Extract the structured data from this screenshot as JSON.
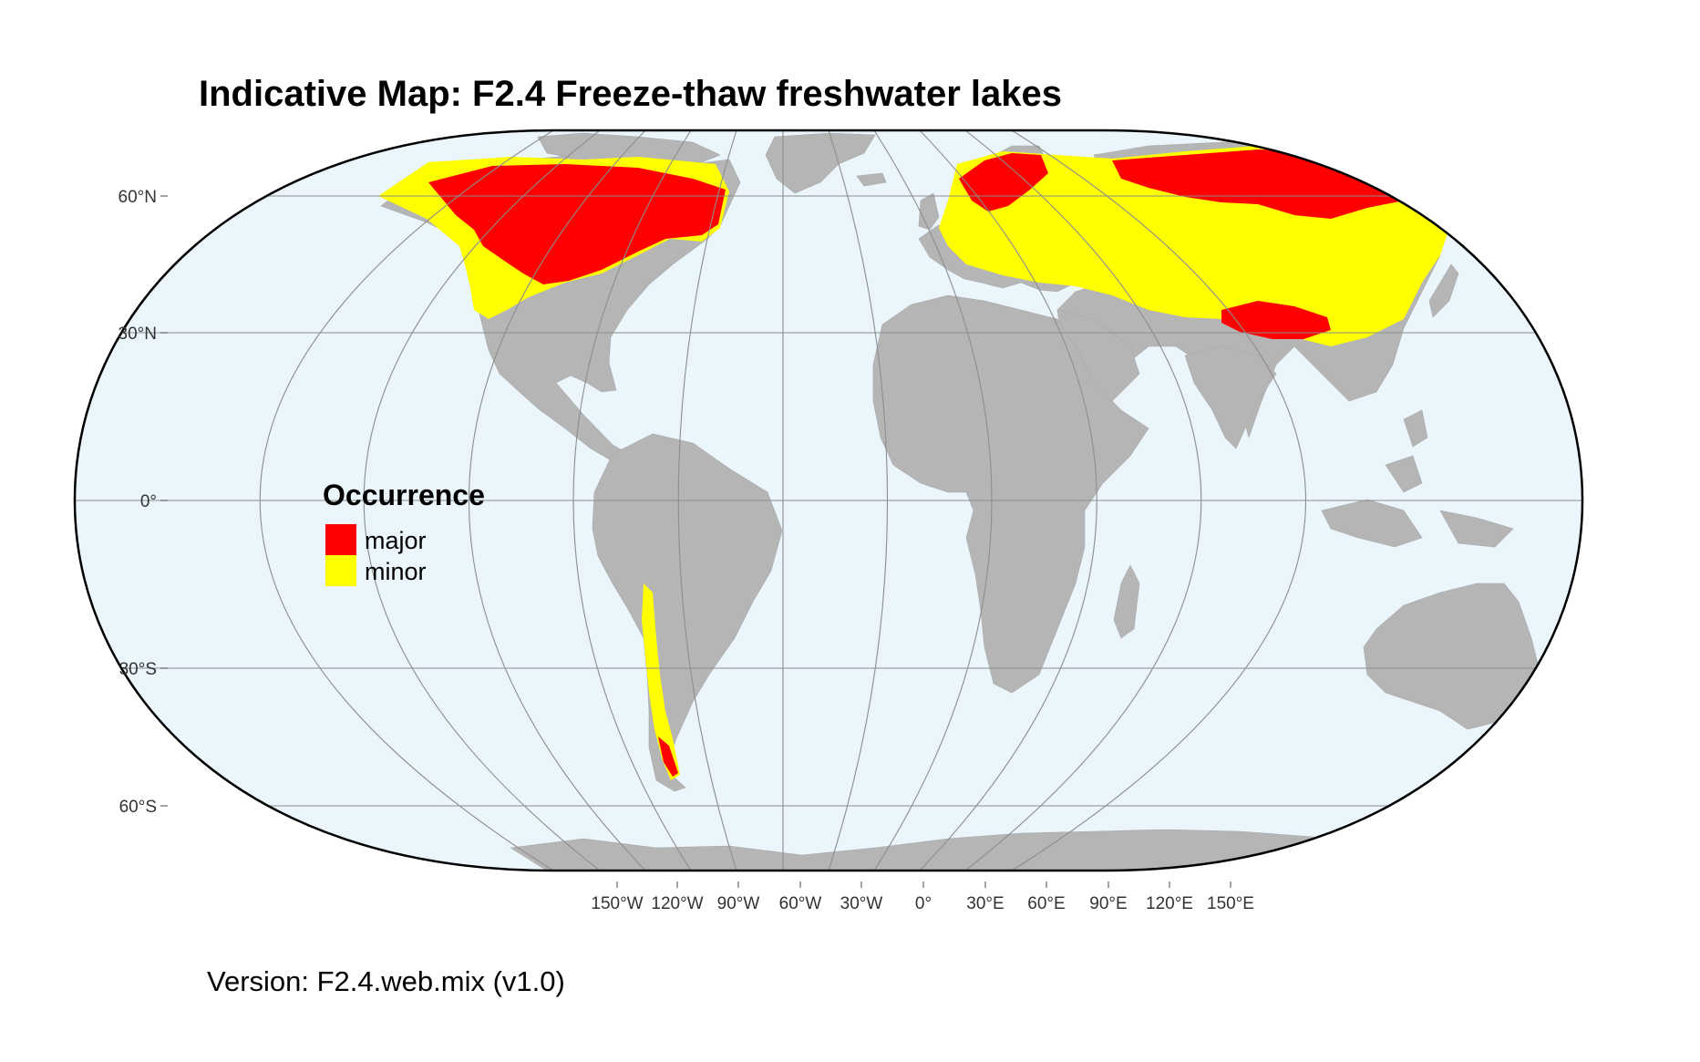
{
  "title": "Indicative Map: F2.4 Freeze-thaw freshwater lakes",
  "version_text": "Version: F2.4.web.mix (v1.0)",
  "colors": {
    "ocean": "#eaf5fc",
    "land": "#b5b5b5",
    "major": "#ff0000",
    "minor": "#ffff00",
    "graticule": "#8d8d8d",
    "frame": "#000000"
  },
  "axes": {
    "lat_ticks": [
      "60°N",
      "30°N",
      "0°",
      "30°S",
      "60°S"
    ],
    "lon_ticks": [
      "150°W",
      "120°W",
      "90°W",
      "60°W",
      "30°W",
      "0°",
      "30°E",
      "60°E",
      "90°E",
      "120°E",
      "150°E"
    ]
  },
  "legend": {
    "title": "Occurrence",
    "items": [
      {
        "label": "major",
        "color": "#ff0000"
      },
      {
        "label": "minor",
        "color": "#ffff00"
      }
    ]
  }
}
